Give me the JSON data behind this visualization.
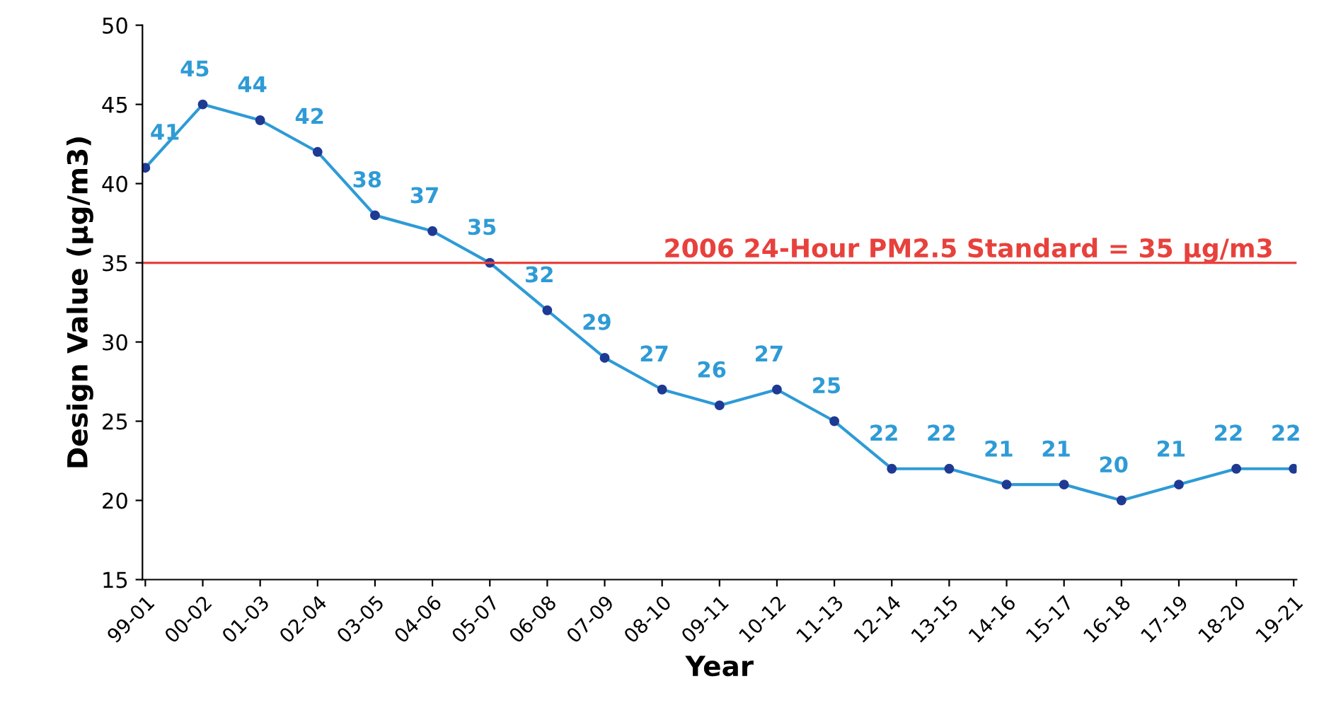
{
  "chart_data": {
    "type": "line",
    "xlabel": "Year",
    "ylabel": "Design Value (µg/m3)",
    "categories": [
      "99-01",
      "00-02",
      "01-03",
      "02-04",
      "03-05",
      "04-06",
      "05-07",
      "06-08",
      "07-09",
      "08-10",
      "09-11",
      "10-12",
      "11-13",
      "12-14",
      "13-15",
      "14-16",
      "15-17",
      "16-18",
      "17-19",
      "18-20",
      "19-21"
    ],
    "series": [
      {
        "color": "#2e9bd6",
        "values": [
          41,
          45,
          44,
          42,
          38,
          37,
          35,
          32,
          29,
          27,
          26,
          27,
          25,
          22,
          22,
          21,
          21,
          20,
          21,
          22,
          22
        ]
      }
    ],
    "ylim": [
      15,
      50
    ],
    "yticks": [
      15,
      20,
      25,
      30,
      35,
      40,
      45,
      50
    ],
    "ref_lines": [
      {
        "axis": "y",
        "value": 35,
        "label": "2006 24-Hour PM2.5 Standard = 35 µg/m3",
        "color": "#e8413c"
      }
    ],
    "data_labels": true,
    "marker": "circle",
    "grid": false,
    "legend": false
  }
}
